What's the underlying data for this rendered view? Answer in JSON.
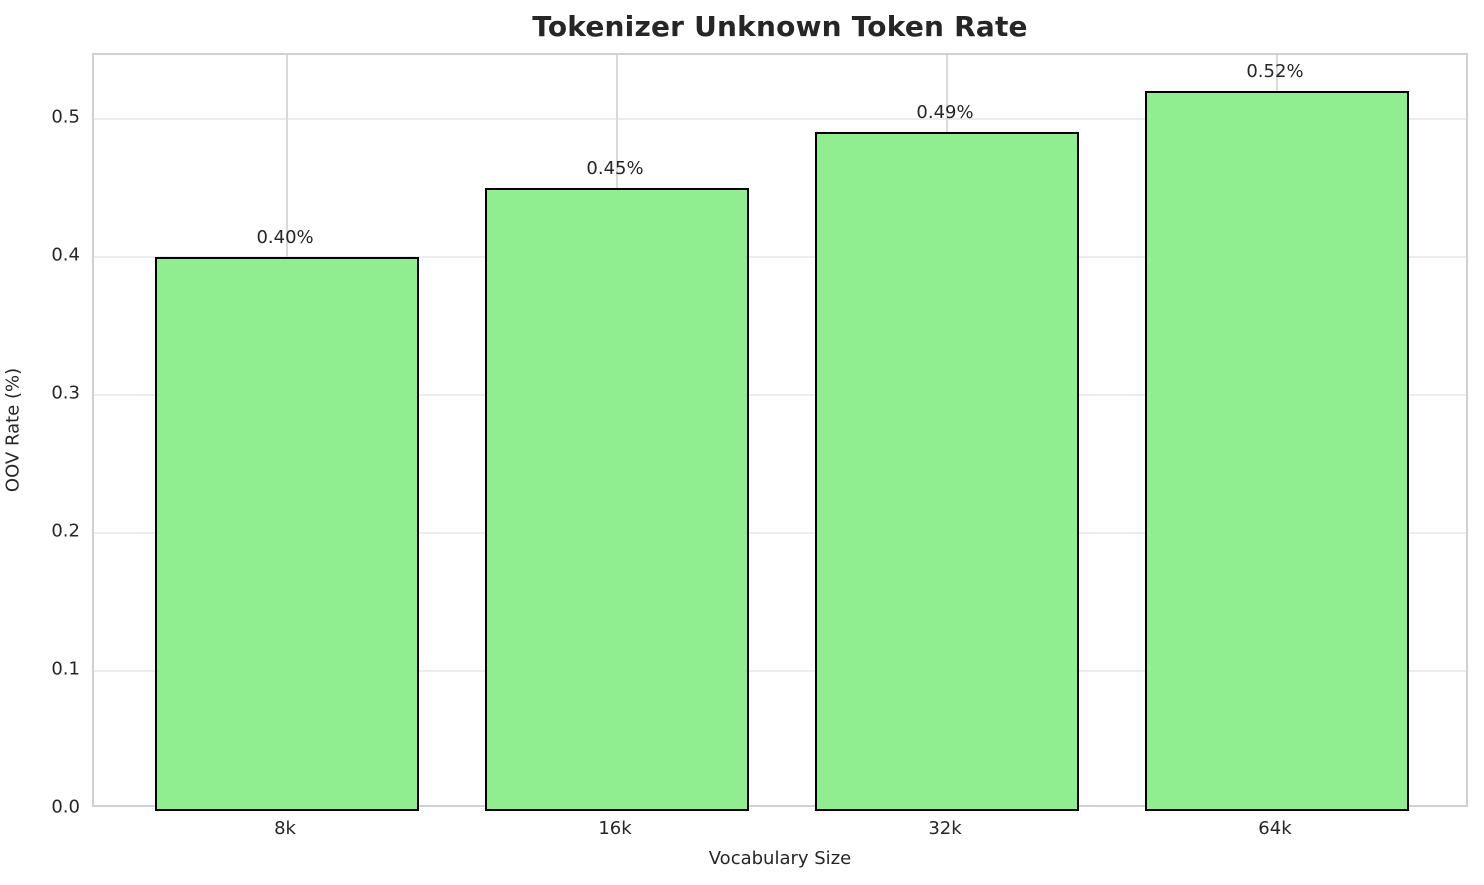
{
  "chart_data": {
    "type": "bar",
    "title": "Tokenizer Unknown Token Rate",
    "xlabel": "Vocabulary Size",
    "ylabel": "OOV Rate (%)",
    "categories": [
      "8k",
      "16k",
      "32k",
      "64k"
    ],
    "values": [
      0.4,
      0.45,
      0.49,
      0.52
    ],
    "value_labels": [
      "0.40%",
      "0.45%",
      "0.49%",
      "0.52%"
    ],
    "yticks": [
      0.0,
      0.1,
      0.2,
      0.3,
      0.4,
      0.5
    ],
    "ytick_labels": [
      "0.0",
      "0.1",
      "0.2",
      "0.3",
      "0.4",
      "0.5"
    ],
    "ylim": [
      0,
      0.546
    ],
    "grid": true,
    "legend": "none",
    "bar_color": "#90EE90",
    "bar_edge_color": "#000000",
    "text_color": "#262626",
    "background_color": "#ffffff"
  }
}
